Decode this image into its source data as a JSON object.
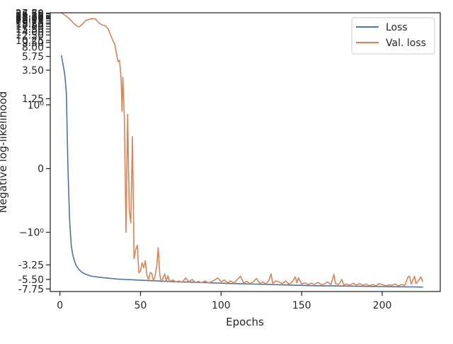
{
  "chart_data": {
    "type": "line",
    "title": "",
    "xlabel": "Epochs",
    "ylabel": "Negative log-likelihood",
    "xlim": [
      -6,
      236
    ],
    "x_ticks": [
      0,
      50,
      100,
      150,
      200
    ],
    "x_tick_labels": [
      "0",
      "50",
      "100",
      "150",
      "200"
    ],
    "y_scale": "symlog",
    "ylim": [
      -8.5,
      27.85
    ],
    "y_ticks": [
      {
        "value": 27.5,
        "label": "27.50"
      },
      {
        "value": 26.75,
        "label": "26.75"
      },
      {
        "value": 25.25,
        "label": "25.25"
      },
      {
        "value": 24.5,
        "label": "24.50"
      },
      {
        "value": 23.75,
        "label": "23.75"
      },
      {
        "value": 23.0,
        "label": "23.00"
      },
      {
        "value": 22.25,
        "label": "22.25"
      },
      {
        "value": 20.75,
        "label": "20.75"
      },
      {
        "value": 19.25,
        "label": "19.25"
      },
      {
        "value": 18.5,
        "label": "18.50"
      },
      {
        "value": 17.0,
        "label": "17.00"
      },
      {
        "value": 15.5,
        "label": "15.50"
      },
      {
        "value": 14.0,
        "label": "14.00"
      },
      {
        "value": 12.5,
        "label": "12.50"
      },
      {
        "value": 10.25,
        "label": "10.25"
      },
      {
        "value": 9.5,
        "label": "9.50"
      },
      {
        "value": 8.0,
        "label": "8.00"
      },
      {
        "value": 5.75,
        "label": "5.75"
      },
      {
        "value": 3.5,
        "label": "3.50"
      },
      {
        "value": 1.25,
        "label": "1.25"
      },
      {
        "value": 1.0,
        "label": "10⁰"
      },
      {
        "value": 0,
        "label": "0"
      },
      {
        "value": -1.0,
        "label": "−10⁰"
      },
      {
        "value": -3.25,
        "label": "-3.25"
      },
      {
        "value": -5.5,
        "label": "-5.50"
      },
      {
        "value": -7.75,
        "label": "-7.75"
      }
    ],
    "grid": false,
    "legend_position": "top-right",
    "series": [
      {
        "name": "Loss",
        "color": "#4c72b0",
        "points": [
          [
            1,
            5.9
          ],
          [
            3,
            3.0
          ],
          [
            4,
            1.5
          ],
          [
            5,
            0.0
          ],
          [
            6,
            -0.8
          ],
          [
            7,
            -1.6
          ],
          [
            8,
            -2.3
          ],
          [
            9,
            -2.8
          ],
          [
            10,
            -3.3
          ],
          [
            12,
            -3.9
          ],
          [
            14,
            -4.3
          ],
          [
            16,
            -4.55
          ],
          [
            18,
            -4.75
          ],
          [
            20,
            -4.9
          ],
          [
            25,
            -5.1
          ],
          [
            30,
            -5.25
          ],
          [
            35,
            -5.4
          ],
          [
            40,
            -5.5
          ],
          [
            45,
            -5.55
          ],
          [
            50,
            -5.65
          ],
          [
            60,
            -5.8
          ],
          [
            70,
            -5.95
          ],
          [
            80,
            -6.05
          ],
          [
            90,
            -6.15
          ],
          [
            100,
            -6.3
          ],
          [
            110,
            -6.4
          ],
          [
            120,
            -6.5
          ],
          [
            130,
            -6.6
          ],
          [
            140,
            -6.7
          ],
          [
            150,
            -6.8
          ],
          [
            160,
            -6.9
          ],
          [
            170,
            -6.95
          ],
          [
            180,
            -7.0
          ],
          [
            190,
            -7.05
          ],
          [
            200,
            -7.1
          ],
          [
            210,
            -7.15
          ],
          [
            220,
            -7.2
          ],
          [
            225,
            -7.25
          ]
        ]
      },
      {
        "name": "Val. loss",
        "color": "#dd8452",
        "points": [
          [
            1,
            27.85
          ],
          [
            3,
            25.5
          ],
          [
            5,
            23.5
          ],
          [
            7,
            21.0
          ],
          [
            9,
            18.5
          ],
          [
            11,
            17.0
          ],
          [
            12,
            16.8
          ],
          [
            14,
            18.5
          ],
          [
            16,
            21.0
          ],
          [
            18,
            22.0
          ],
          [
            20,
            22.5
          ],
          [
            22,
            22.3
          ],
          [
            24,
            19.5
          ],
          [
            26,
            18.0
          ],
          [
            28,
            17.5
          ],
          [
            30,
            15.5
          ],
          [
            32,
            11.5
          ],
          [
            33,
            10.0
          ],
          [
            34,
            9.0
          ],
          [
            35,
            6.5
          ],
          [
            36,
            4.8
          ],
          [
            37,
            5.0
          ],
          [
            38,
            2.5
          ],
          [
            38.5,
            0.9
          ],
          [
            39,
            2.7
          ],
          [
            40,
            0.8
          ],
          [
            41,
            -1.0
          ],
          [
            42,
            0.85
          ],
          [
            43,
            -0.65
          ],
          [
            44,
            -0.85
          ],
          [
            45,
            0.5
          ],
          [
            46,
            -2.6
          ],
          [
            47,
            -1.85
          ],
          [
            48,
            -1.6
          ],
          [
            49,
            -4.3
          ],
          [
            50,
            -4.1
          ],
          [
            51,
            -3.0
          ],
          [
            52,
            -3.6
          ],
          [
            53,
            -2.8
          ],
          [
            54,
            -4.8
          ],
          [
            55,
            -5.5
          ],
          [
            56,
            -4.3
          ],
          [
            57,
            -4.4
          ],
          [
            58,
            -5.7
          ],
          [
            59,
            -4.9
          ],
          [
            60,
            -3.5
          ],
          [
            61,
            -1.75
          ],
          [
            62,
            -4.7
          ],
          [
            63,
            -6.0
          ],
          [
            64,
            -5.2
          ],
          [
            65,
            -4.5
          ],
          [
            66,
            -5.8
          ],
          [
            67,
            -4.8
          ],
          [
            68,
            -5.9
          ],
          [
            70,
            -5.6
          ],
          [
            72,
            -6.0
          ],
          [
            74,
            -5.8
          ],
          [
            76,
            -6.1
          ],
          [
            78,
            -5.2
          ],
          [
            80,
            -6.0
          ],
          [
            82,
            -5.5
          ],
          [
            84,
            -6.1
          ],
          [
            86,
            -5.9
          ],
          [
            88,
            -6.2
          ],
          [
            90,
            -5.8
          ],
          [
            92,
            -6.2
          ],
          [
            94,
            -6.0
          ],
          [
            96,
            -5.6
          ],
          [
            98,
            -5.2
          ],
          [
            100,
            -6.0
          ],
          [
            102,
            -5.6
          ],
          [
            104,
            -6.2
          ],
          [
            106,
            -5.8
          ],
          [
            108,
            -6.3
          ],
          [
            110,
            -5.5
          ],
          [
            112,
            -4.9
          ],
          [
            114,
            -6.2
          ],
          [
            116,
            -5.9
          ],
          [
            118,
            -6.4
          ],
          [
            120,
            -6.0
          ],
          [
            122,
            -5.3
          ],
          [
            124,
            -6.3
          ],
          [
            126,
            -6.0
          ],
          [
            128,
            -6.5
          ],
          [
            130,
            -5.4
          ],
          [
            131,
            -4.5
          ],
          [
            132,
            -6.3
          ],
          [
            134,
            -5.8
          ],
          [
            136,
            -6.0
          ],
          [
            138,
            -6.4
          ],
          [
            140,
            -5.8
          ],
          [
            142,
            -6.5
          ],
          [
            144,
            -6.1
          ],
          [
            146,
            -5.0
          ],
          [
            147,
            -6.2
          ],
          [
            148,
            -5.2
          ],
          [
            150,
            -6.5
          ],
          [
            152,
            -6.2
          ],
          [
            154,
            -6.6
          ],
          [
            156,
            -6.3
          ],
          [
            158,
            -6.6
          ],
          [
            160,
            -6.1
          ],
          [
            162,
            -6.6
          ],
          [
            164,
            -6.5
          ],
          [
            166,
            -6.0
          ],
          [
            168,
            -6.6
          ],
          [
            169,
            -5.6
          ],
          [
            170,
            -4.6
          ],
          [
            171,
            -6.4
          ],
          [
            173,
            -6.6
          ],
          [
            175,
            -5.5
          ],
          [
            176,
            -6.7
          ],
          [
            178,
            -6.5
          ],
          [
            180,
            -6.8
          ],
          [
            182,
            -6.3
          ],
          [
            184,
            -6.7
          ],
          [
            186,
            -6.4
          ],
          [
            188,
            -6.8
          ],
          [
            190,
            -6.5
          ],
          [
            192,
            -6.9
          ],
          [
            194,
            -6.6
          ],
          [
            196,
            -6.9
          ],
          [
            198,
            -6.4
          ],
          [
            200,
            -6.6
          ],
          [
            202,
            -6.9
          ],
          [
            204,
            -6.7
          ],
          [
            206,
            -6.8
          ],
          [
            208,
            -6.5
          ],
          [
            210,
            -6.9
          ],
          [
            212,
            -6.6
          ],
          [
            214,
            -6.8
          ],
          [
            216,
            -5.0
          ],
          [
            217,
            -4.9
          ],
          [
            218,
            -6.5
          ],
          [
            220,
            -4.9
          ],
          [
            221,
            -6.4
          ],
          [
            223,
            -5.5
          ],
          [
            224,
            -5.0
          ],
          [
            225,
            -5.9
          ]
        ]
      }
    ]
  }
}
